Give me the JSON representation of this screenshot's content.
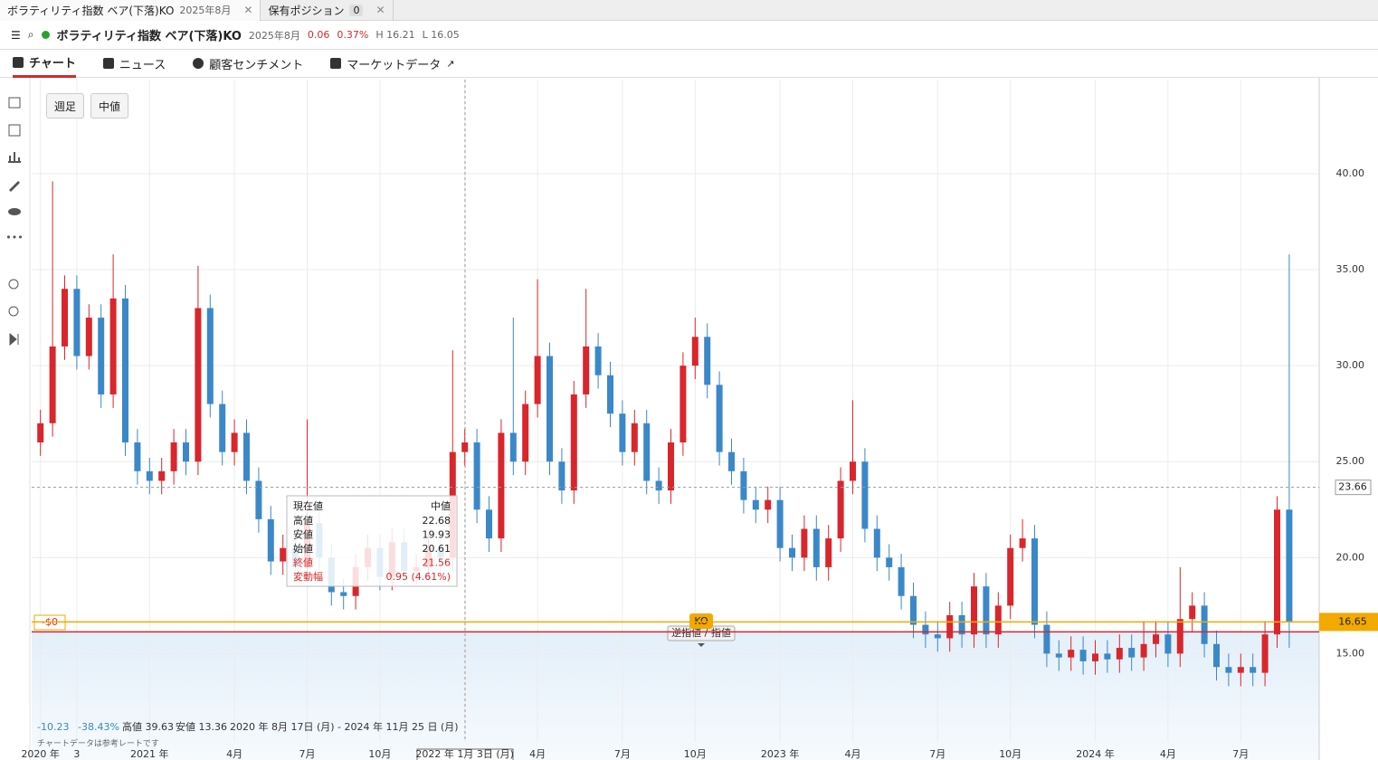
{
  "tabs": [
    {
      "title": "ボラティリティ指数 ベア(下落)KO",
      "date": "2025年8月"
    },
    {
      "title": "保有ポジション",
      "count": "0"
    }
  ],
  "instrument": {
    "name": "ボラティリティ指数 ベア(下落)KO",
    "date": "2025年8月",
    "change": "0.06",
    "change_pct": "0.37%",
    "high": "H 16.21",
    "low": "L 16.05"
  },
  "nav": [
    "チャート",
    "ニュース",
    "顧客センチメント",
    "マーケットデータ"
  ],
  "chart_buttons": [
    "週足",
    "中値"
  ],
  "tooltip": {
    "title": "現在値",
    "mode": "中値",
    "rows": [
      [
        "高値",
        "22.68"
      ],
      [
        "安値",
        "19.93"
      ],
      [
        "始値",
        "20.61"
      ],
      [
        "終値",
        "21.56"
      ],
      [
        "変動幅",
        "0.95 (4.61%)"
      ]
    ]
  },
  "order": {
    "pnl": "-$0",
    "badge": "KO",
    "label": "逆指値 / 指値"
  },
  "stats": {
    "change": "-10.23",
    "change_pct": "-38.43%",
    "high": "高値 39.63",
    "low": "安値 13.36",
    "range": "2020 年 8月 17日 (月) - 2024 年 11月 25 日 (月)"
  },
  "note": "チャートデータは参考レートです",
  "chart_data": {
    "type": "candlestick",
    "categories": [
      "2020 年",
      null,
      null,
      "3",
      null,
      null,
      null,
      null,
      null,
      "2021 年",
      null,
      null,
      null,
      null,
      null,
      null,
      "4月",
      null,
      null,
      null,
      null,
      null,
      "7月",
      null,
      null,
      null,
      null,
      null,
      "10月",
      null,
      null,
      null,
      null,
      null,
      null,
      "2022 年 1月 3日 (月)",
      null,
      null,
      null,
      null,
      null,
      "4月",
      null,
      null,
      null,
      null,
      null,
      null,
      "7月",
      null,
      null,
      null,
      null,
      null,
      "10月",
      null,
      null,
      null,
      null,
      null,
      null,
      "2023 年",
      null,
      null,
      null,
      null,
      null,
      "4月",
      null,
      null,
      null,
      null,
      null,
      null,
      "7月",
      null,
      null,
      null,
      null,
      null,
      "10月",
      null,
      null,
      null,
      null,
      null,
      null,
      "2024 年",
      null,
      null,
      null,
      null,
      null,
      "4月",
      null,
      null,
      null,
      null,
      null,
      "7月",
      null,
      null,
      null,
      null
    ],
    "open": [
      26.0,
      27.0,
      31.0,
      34.0,
      30.5,
      32.5,
      28.5,
      33.5,
      26.0,
      24.5,
      24.0,
      24.5,
      26.0,
      25.0,
      33.0,
      28.0,
      25.5,
      26.5,
      24.0,
      22.0,
      19.8,
      20.5,
      19.5,
      21.8,
      20.0,
      18.2,
      18.0,
      19.5,
      20.5,
      19.0,
      20.8,
      19.3,
      19.5,
      20.5,
      20.0,
      25.5,
      26.0,
      22.5,
      21.0,
      26.5,
      25.0,
      28.0,
      30.5,
      25.0,
      23.5,
      28.5,
      31.0,
      29.5,
      27.5,
      25.5,
      27.0,
      24.0,
      23.5,
      26.0,
      30.0,
      31.5,
      29.0,
      25.5,
      24.5,
      23.0,
      22.5,
      23.0,
      20.5,
      20.0,
      21.5,
      19.5,
      21.0,
      24.0,
      25.0,
      21.5,
      20.0,
      19.5,
      18.0,
      16.5,
      16.0,
      15.8,
      17.0,
      16.0,
      18.5,
      16.0,
      17.5,
      20.5,
      21.0,
      16.5,
      15.0,
      14.8,
      15.2,
      14.6,
      15.0,
      14.7,
      15.3,
      14.8,
      15.5,
      16.0,
      15.0,
      16.8,
      17.5,
      15.5,
      14.3,
      14.0,
      14.3,
      14.0,
      16.0,
      22.5
    ],
    "high": [
      27.7,
      39.6,
      34.7,
      34.7,
      33.2,
      33.2,
      35.8,
      34.2,
      26.7,
      25.2,
      25.2,
      26.7,
      26.7,
      35.2,
      33.7,
      28.7,
      27.2,
      27.2,
      24.7,
      22.7,
      21.2,
      21.2,
      27.2,
      22.5,
      20.7,
      18.9,
      20.2,
      21.2,
      21.2,
      21.5,
      21.5,
      20.2,
      21.2,
      21.2,
      30.8,
      26.7,
      26.7,
      23.2,
      27.2,
      32.5,
      28.7,
      34.5,
      31.2,
      25.7,
      29.2,
      34.0,
      31.7,
      30.2,
      28.2,
      27.7,
      27.7,
      24.7,
      26.7,
      30.7,
      32.5,
      32.2,
      29.7,
      26.2,
      25.2,
      23.7,
      23.7,
      23.7,
      21.2,
      22.2,
      22.2,
      21.7,
      24.7,
      28.2,
      25.7,
      22.2,
      20.7,
      20.2,
      18.7,
      17.2,
      16.7,
      17.7,
      17.7,
      19.2,
      19.2,
      18.2,
      21.2,
      22.0,
      21.7,
      17.2,
      15.7,
      15.9,
      15.9,
      15.7,
      15.7,
      16.0,
      16.0,
      16.7,
      16.7,
      16.7,
      19.5,
      18.2,
      18.2,
      16.2,
      15.0,
      15.0,
      15.0,
      16.7,
      23.2,
      35.8
    ],
    "low": [
      25.3,
      26.3,
      30.3,
      29.8,
      29.8,
      27.8,
      27.8,
      25.3,
      23.8,
      23.3,
      23.3,
      23.8,
      24.3,
      24.3,
      27.3,
      24.8,
      24.8,
      23.3,
      21.3,
      19.1,
      19.1,
      18.8,
      18.8,
      19.3,
      17.5,
      17.3,
      17.3,
      18.8,
      18.3,
      18.3,
      18.6,
      18.6,
      18.8,
      19.3,
      19.3,
      24.8,
      21.8,
      20.3,
      20.3,
      24.3,
      24.3,
      27.3,
      24.3,
      22.8,
      22.8,
      27.8,
      28.8,
      26.8,
      24.8,
      24.8,
      23.3,
      22.8,
      22.8,
      25.3,
      29.3,
      28.3,
      24.8,
      23.8,
      22.3,
      21.8,
      21.8,
      19.8,
      19.3,
      19.3,
      18.8,
      18.8,
      20.3,
      23.3,
      20.8,
      19.3,
      18.8,
      17.3,
      15.8,
      15.3,
      15.1,
      15.1,
      15.3,
      15.3,
      15.3,
      15.3,
      16.8,
      19.8,
      15.8,
      14.3,
      14.1,
      14.1,
      13.9,
      13.9,
      14.0,
      14.0,
      14.1,
      14.1,
      14.8,
      14.3,
      14.3,
      16.1,
      14.8,
      13.6,
      13.3,
      13.3,
      13.3,
      13.3,
      15.3,
      15.3
    ],
    "close": [
      27.0,
      31.0,
      34.0,
      30.5,
      32.5,
      28.5,
      33.5,
      26.0,
      24.5,
      24.0,
      24.5,
      26.0,
      25.0,
      33.0,
      28.0,
      25.5,
      26.5,
      24.0,
      22.0,
      19.8,
      20.5,
      19.5,
      21.8,
      20.0,
      18.2,
      18.0,
      19.5,
      20.5,
      19.0,
      20.8,
      19.3,
      19.5,
      20.5,
      20.0,
      25.5,
      26.0,
      22.5,
      21.0,
      26.5,
      25.0,
      28.0,
      30.5,
      25.0,
      23.5,
      28.5,
      31.0,
      29.5,
      27.5,
      25.5,
      27.0,
      24.0,
      23.5,
      26.0,
      30.0,
      31.5,
      29.0,
      25.5,
      24.5,
      23.0,
      22.5,
      23.0,
      20.5,
      20.0,
      21.5,
      19.5,
      21.0,
      24.0,
      25.0,
      21.5,
      20.0,
      19.5,
      18.0,
      16.5,
      16.0,
      15.8,
      17.0,
      16.0,
      18.5,
      16.0,
      17.5,
      20.5,
      21.0,
      16.5,
      15.0,
      14.8,
      15.2,
      14.6,
      15.0,
      14.7,
      15.3,
      14.8,
      15.5,
      16.0,
      15.0,
      16.8,
      17.5,
      15.5,
      14.3,
      14.0,
      14.3,
      14.0,
      16.0,
      22.5,
      16.65
    ],
    "up_color": "#d9262c",
    "down_color": "#3b88c9",
    "ylim": [
      10.4,
      44.9
    ],
    "yticks": [
      {
        "value": 15,
        "label": "15.00"
      },
      {
        "value": 20,
        "label": "20.00"
      },
      {
        "value": 25,
        "label": "25.00"
      },
      {
        "value": 30,
        "label": "30.00"
      },
      {
        "value": 35,
        "label": "35.00"
      },
      {
        "value": 40,
        "label": "40.00"
      }
    ],
    "grid": true,
    "price_lines": [
      {
        "value": 23.66,
        "color": "#9a9a9a",
        "dashed": true,
        "label_style": "outline"
      },
      {
        "value": 16.65,
        "color": "#f2a900",
        "label_style": "filled"
      },
      {
        "value": 16.13,
        "color": "#d9262c",
        "shade_below": true
      }
    ]
  }
}
